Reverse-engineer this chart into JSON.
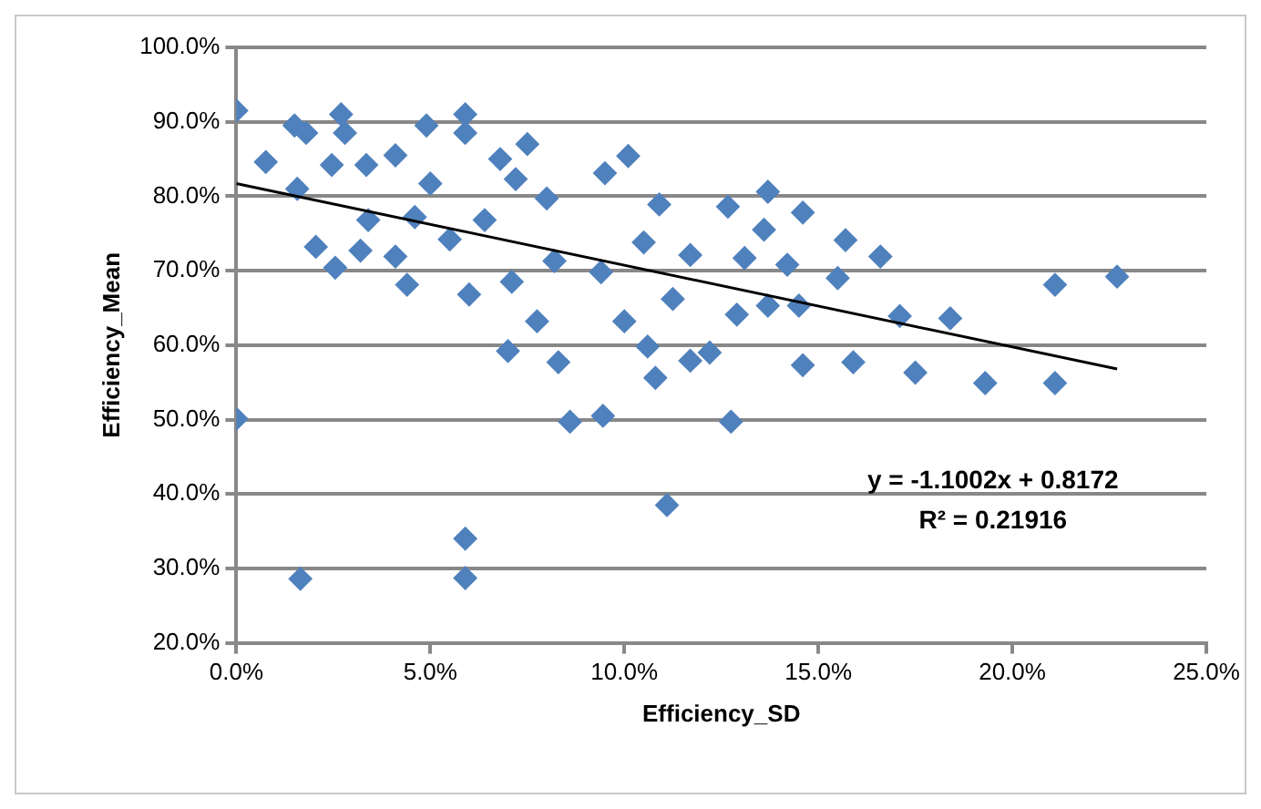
{
  "chart_data": {
    "type": "scatter",
    "xlabel": "Efficiency_SD",
    "ylabel": "Efficiency_Mean",
    "xlim": [
      0,
      0.25
    ],
    "xticks": [
      {
        "value": 0,
        "label": "0.0%"
      },
      {
        "value": 0.05,
        "label": "5.0%"
      },
      {
        "value": 0.1,
        "label": "10.0%"
      },
      {
        "value": 0.15,
        "label": "15.0%"
      },
      {
        "value": 0.2,
        "label": "20.0%"
      },
      {
        "value": 0.25,
        "label": "25.0%"
      }
    ],
    "ylim": [
      0.2,
      1.0
    ],
    "yticks": [
      {
        "value": 0.2,
        "label": "20.0%"
      },
      {
        "value": 0.3,
        "label": "30.0%"
      },
      {
        "value": 0.4,
        "label": "40.0%"
      },
      {
        "value": 0.5,
        "label": "50.0%"
      },
      {
        "value": 0.6,
        "label": "60.0%"
      },
      {
        "value": 0.7,
        "label": "70.0%"
      },
      {
        "value": 0.8,
        "label": "80.0%"
      },
      {
        "value": 0.9,
        "label": "90.0%"
      },
      {
        "value": 1.0,
        "label": "100.0%"
      }
    ],
    "grid": "y",
    "marker": "diamond",
    "annotations": [
      "y = -1.1002x + 0.8172",
      "R² = 0.21916"
    ],
    "series": [
      {
        "type": "scatter",
        "color": "#4f81bd",
        "x": [
          0,
          0.0165,
          0.059,
          0.059,
          0.111,
          0.086,
          0.0945,
          0.07,
          0.083,
          0.0775,
          0.1,
          0.106,
          0.108,
          0.117,
          0.1125,
          0.094,
          0.071,
          0.06,
          0.044,
          0.0255,
          0.0205,
          0.032,
          0.041,
          0.082,
          0.105,
          0.117,
          0.109,
          0.08,
          0.064,
          0.055,
          0.034,
          0.046,
          0.0157,
          0.0076,
          0.0246,
          0.0335,
          0.05,
          0.072,
          0.095,
          0.101,
          0.1267,
          0.137,
          0.146,
          0.136,
          0.131,
          0.142,
          0.157,
          0.166,
          0.155,
          0.129,
          0.137,
          0.145,
          0.171,
          0.184,
          0.211,
          0.227,
          0.146,
          0.159,
          0.175,
          0.193,
          0.211,
          0.1275,
          0.122,
          0,
          0.015,
          0.018,
          0.027,
          0.028,
          0.049,
          0.059,
          0.059,
          0.068,
          0.041,
          0.075
        ],
        "values": [
          0.501,
          0.286,
          0.34,
          0.287,
          0.385,
          0.497,
          0.505,
          0.592,
          0.577,
          0.632,
          0.632,
          0.598,
          0.556,
          0.579,
          0.662,
          0.698,
          0.685,
          0.668,
          0.681,
          0.704,
          0.732,
          0.727,
          0.719,
          0.713,
          0.738,
          0.721,
          0.789,
          0.797,
          0.768,
          0.742,
          0.768,
          0.772,
          0.81,
          0.846,
          0.842,
          0.842,
          0.817,
          0.823,
          0.831,
          0.854,
          0.786,
          0.806,
          0.778,
          0.755,
          0.717,
          0.708,
          0.741,
          0.719,
          0.69,
          0.641,
          0.653,
          0.653,
          0.639,
          0.636,
          0.681,
          0.692,
          0.573,
          0.577,
          0.563,
          0.549,
          0.549,
          0.497,
          0.59,
          0.915,
          0.895,
          0.885,
          0.91,
          0.885,
          0.895,
          0.91,
          0.885,
          0.85,
          0.855,
          0.87
        ]
      },
      {
        "type": "line",
        "color": "#000000",
        "marker": "none",
        "x": [
          0,
          0.227
        ],
        "values": [
          0.817,
          0.568
        ]
      }
    ]
  }
}
